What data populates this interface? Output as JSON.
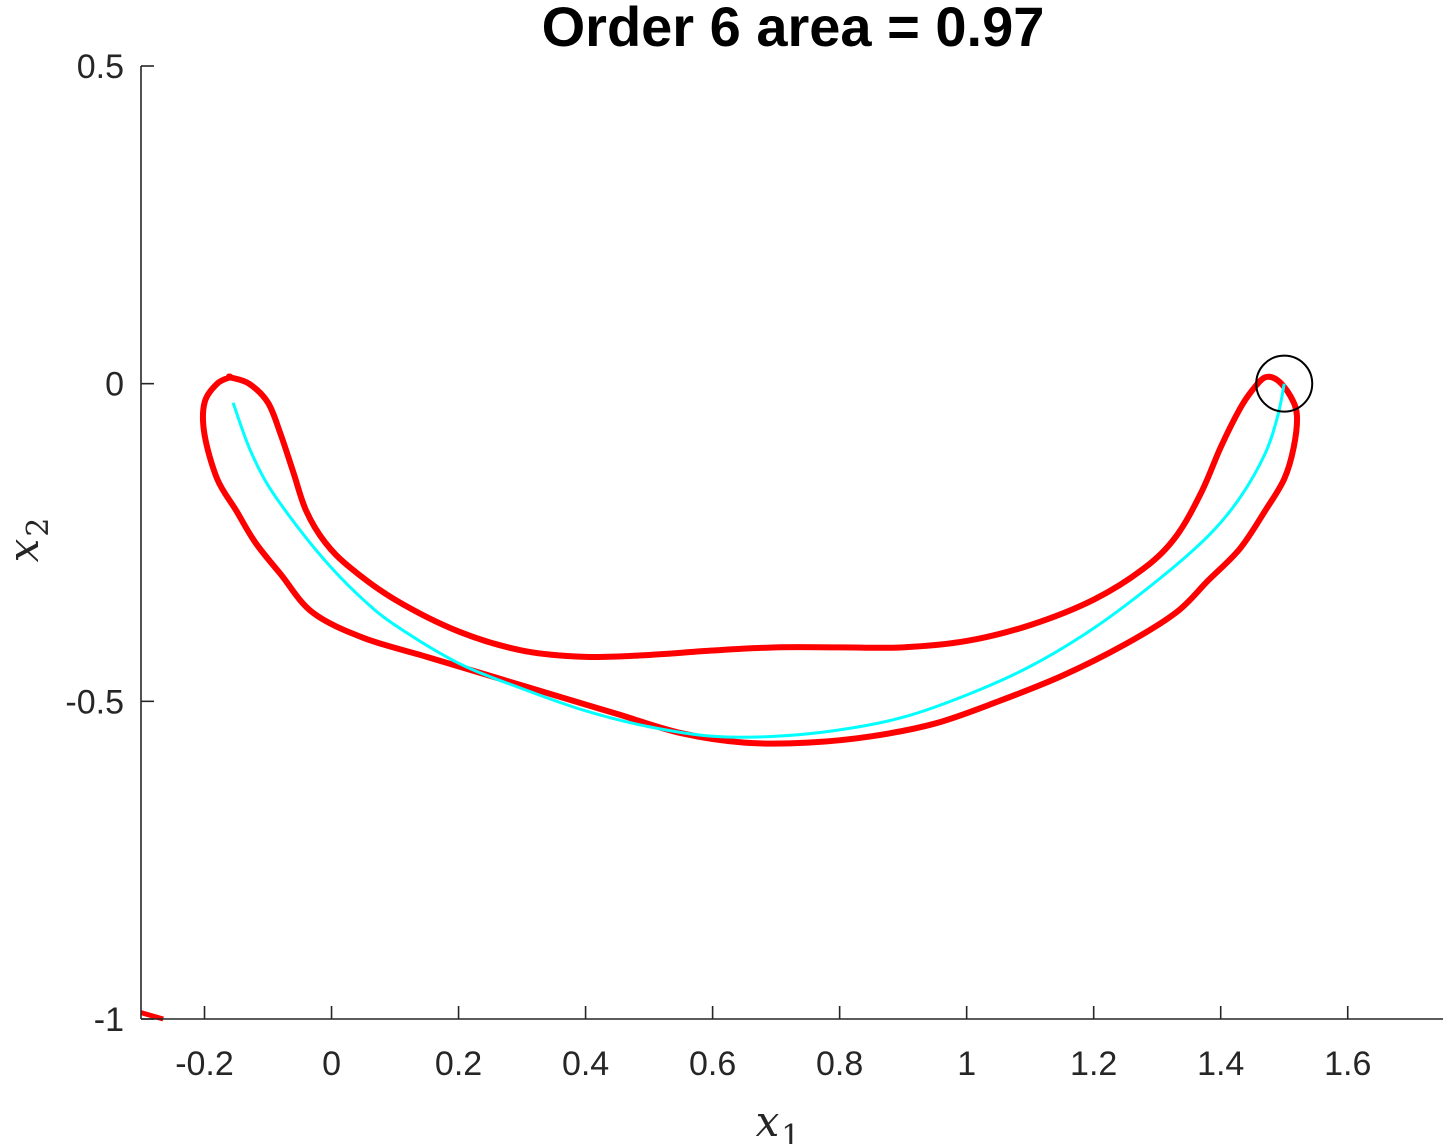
{
  "chart_data": {
    "type": "line",
    "title": "Order 6 area = 0.97",
    "xlabel": "x",
    "xlabel_sub": "1",
    "ylabel": "x",
    "ylabel_sub": "2",
    "xlim": [
      -0.3,
      1.75
    ],
    "ylim": [
      -1,
      0.5
    ],
    "xticks": [
      -0.2,
      0,
      0.2,
      0.4,
      0.6,
      0.8,
      1,
      1.2,
      1.4,
      1.6
    ],
    "xtick_labels": [
      "-0.2",
      "0",
      "0.2",
      "0.4",
      "0.6",
      "0.8",
      "1",
      "1.2",
      "1.4",
      "1.6"
    ],
    "yticks": [
      -1,
      -0.5,
      0,
      0.5
    ],
    "ytick_labels": [
      "-1",
      "-0.5",
      "0",
      "0.5"
    ],
    "grid": false,
    "box": false,
    "colors": {
      "outer": "#ff0000",
      "inner": "#00ffff",
      "marker": "#000000",
      "axis": "#262626"
    },
    "series": [
      {
        "style": "outer-contour",
        "color": "#ff0000",
        "closed": true,
        "x": [
          -0.16,
          -0.13,
          -0.1,
          -0.08,
          -0.06,
          -0.04,
          -0.01,
          0.03,
          0.1,
          0.2,
          0.3,
          0.4,
          0.5,
          0.6,
          0.7,
          0.8,
          0.9,
          1.0,
          1.1,
          1.2,
          1.28,
          1.33,
          1.37,
          1.4,
          1.43,
          1.45,
          1.47,
          1.49,
          1.51,
          1.52,
          1.515,
          1.5,
          1.47,
          1.43,
          1.38,
          1.33,
          1.25,
          1.15,
          1.05,
          0.95,
          0.85,
          0.75,
          0.65,
          0.55,
          0.45,
          0.35,
          0.25,
          0.15,
          0.05,
          -0.03,
          -0.08,
          -0.12,
          -0.15,
          -0.18,
          -0.2,
          -0.2,
          -0.18,
          -0.16
        ],
        "y": [
          0.01,
          0.0,
          -0.03,
          -0.08,
          -0.14,
          -0.2,
          -0.25,
          -0.29,
          -0.34,
          -0.39,
          -0.42,
          -0.43,
          -0.427,
          -0.42,
          -0.415,
          -0.415,
          -0.415,
          -0.405,
          -0.38,
          -0.34,
          -0.29,
          -0.24,
          -0.17,
          -0.1,
          -0.04,
          -0.01,
          0.01,
          0.005,
          -0.02,
          -0.05,
          -0.1,
          -0.15,
          -0.2,
          -0.26,
          -0.31,
          -0.36,
          -0.41,
          -0.46,
          -0.5,
          -0.535,
          -0.555,
          -0.565,
          -0.565,
          -0.55,
          -0.52,
          -0.49,
          -0.46,
          -0.43,
          -0.4,
          -0.36,
          -0.3,
          -0.25,
          -0.2,
          -0.15,
          -0.08,
          -0.03,
          0.0,
          0.01
        ]
      },
      {
        "style": "inner-curve",
        "color": "#00ffff",
        "closed": false,
        "x": [
          -0.155,
          -0.13,
          -0.1,
          -0.05,
          0.0,
          0.05,
          0.1,
          0.2,
          0.3,
          0.4,
          0.5,
          0.6,
          0.7,
          0.8,
          0.9,
          1.0,
          1.1,
          1.2,
          1.3,
          1.38,
          1.43,
          1.47,
          1.49,
          1.5
        ],
        "y": [
          -0.03,
          -0.1,
          -0.16,
          -0.23,
          -0.29,
          -0.34,
          -0.38,
          -0.44,
          -0.48,
          -0.515,
          -0.54,
          -0.555,
          -0.555,
          -0.545,
          -0.525,
          -0.49,
          -0.445,
          -0.385,
          -0.31,
          -0.24,
          -0.18,
          -0.11,
          -0.05,
          0.0
        ]
      },
      {
        "style": "edge-segment",
        "color": "#ff0000",
        "closed": false,
        "x": [
          -0.3,
          -0.265
        ],
        "y": [
          -0.99,
          -1.0
        ]
      }
    ],
    "marker": {
      "shape": "circle",
      "x": 1.5,
      "y": 0.0,
      "color": "#000000"
    }
  }
}
